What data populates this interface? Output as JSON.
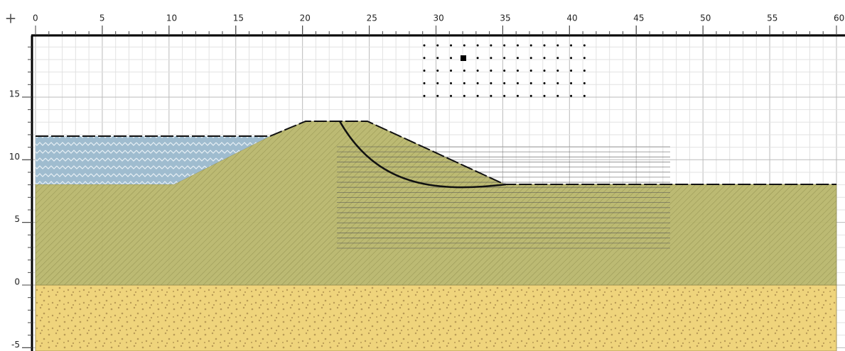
{
  "ruler": {
    "corner": "+",
    "top_ticks": [
      0,
      5,
      10,
      15,
      20,
      25,
      30,
      35,
      40,
      45,
      50,
      55,
      60
    ],
    "left_ticks": [
      15,
      10,
      5,
      0,
      -5
    ]
  }
}
